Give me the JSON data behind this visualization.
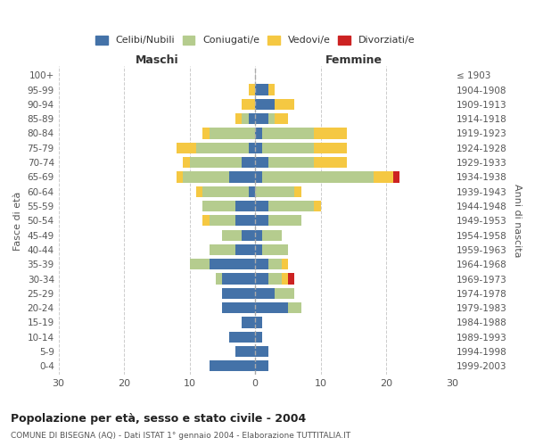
{
  "age_groups": [
    "0-4",
    "5-9",
    "10-14",
    "15-19",
    "20-24",
    "25-29",
    "30-34",
    "35-39",
    "40-44",
    "45-49",
    "50-54",
    "55-59",
    "60-64",
    "65-69",
    "70-74",
    "75-79",
    "80-84",
    "85-89",
    "90-94",
    "95-99",
    "100+"
  ],
  "birth_years": [
    "1999-2003",
    "1994-1998",
    "1989-1993",
    "1984-1988",
    "1979-1983",
    "1974-1978",
    "1969-1973",
    "1964-1968",
    "1959-1963",
    "1954-1958",
    "1949-1953",
    "1944-1948",
    "1939-1943",
    "1934-1938",
    "1929-1933",
    "1924-1928",
    "1919-1923",
    "1914-1918",
    "1909-1913",
    "1904-1908",
    "≤ 1903"
  ],
  "maschi": {
    "celibe": [
      7,
      3,
      4,
      2,
      5,
      5,
      5,
      7,
      3,
      2,
      3,
      3,
      1,
      4,
      2,
      1,
      0,
      1,
      0,
      0,
      0
    ],
    "coniugato": [
      0,
      0,
      0,
      0,
      0,
      0,
      1,
      3,
      4,
      3,
      4,
      5,
      7,
      7,
      8,
      8,
      7,
      1,
      0,
      0,
      0
    ],
    "vedovo": [
      0,
      0,
      0,
      0,
      0,
      0,
      0,
      0,
      0,
      0,
      1,
      0,
      1,
      1,
      1,
      3,
      1,
      1,
      2,
      1,
      0
    ],
    "divorziato": [
      0,
      0,
      0,
      0,
      0,
      0,
      0,
      0,
      0,
      0,
      0,
      0,
      0,
      0,
      0,
      0,
      0,
      0,
      0,
      0,
      0
    ]
  },
  "femmine": {
    "nubile": [
      2,
      2,
      1,
      1,
      5,
      3,
      2,
      2,
      1,
      1,
      2,
      2,
      0,
      1,
      2,
      1,
      1,
      2,
      3,
      2,
      0
    ],
    "coniugata": [
      0,
      0,
      0,
      0,
      2,
      3,
      2,
      2,
      4,
      3,
      5,
      7,
      6,
      17,
      7,
      8,
      8,
      1,
      0,
      0,
      0
    ],
    "vedova": [
      0,
      0,
      0,
      0,
      0,
      0,
      1,
      1,
      0,
      0,
      0,
      1,
      1,
      3,
      5,
      5,
      5,
      2,
      3,
      1,
      0
    ],
    "divorziata": [
      0,
      0,
      0,
      0,
      0,
      0,
      1,
      0,
      0,
      0,
      0,
      0,
      0,
      1,
      0,
      0,
      0,
      0,
      0,
      0,
      0
    ]
  },
  "colors": {
    "celibe_nubile": "#4472a8",
    "coniugato": "#b5cc8e",
    "vedovo": "#f5c842",
    "divorziato": "#cc2222"
  },
  "title": "Popolazione per età, sesso e stato civile - 2004",
  "subtitle": "COMUNE DI BISEGNA (AQ) - Dati ISTAT 1° gennaio 2004 - Elaborazione TUTTITALIA.IT",
  "xlabel_left": "Maschi",
  "xlabel_right": "Femmine",
  "ylabel_left": "Fasce di età",
  "ylabel_right": "Anni di nascita",
  "xlim": 30,
  "background_color": "#ffffff",
  "grid_color": "#cccccc"
}
